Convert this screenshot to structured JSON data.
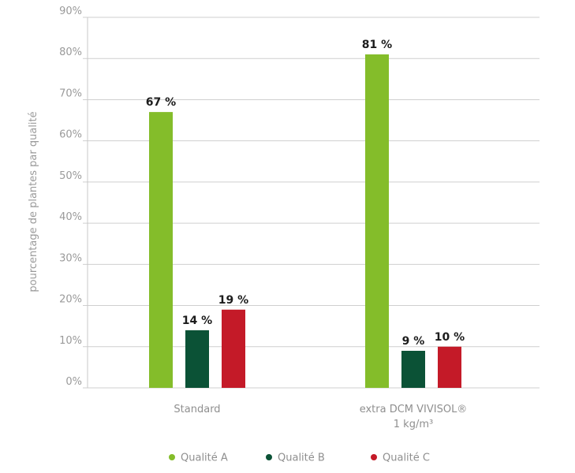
{
  "chart_data": {
    "type": "bar",
    "categories": [
      "Standard",
      "extra DCM VIVISOL®"
    ],
    "category_sublabels": [
      "",
      "1 kg/m³"
    ],
    "series": [
      {
        "name": "Qualité A",
        "color": "#84bd2a",
        "values": [
          67,
          81
        ],
        "labels": [
          "67 %",
          "81 %"
        ]
      },
      {
        "name": "Qualité B",
        "color": "#0b5236",
        "values": [
          14,
          9
        ],
        "labels": [
          "14 %",
          "9 %"
        ]
      },
      {
        "name": "Qualité C",
        "color": "#c41a28",
        "values": [
          19,
          10
        ],
        "labels": [
          "19 %",
          "10 %"
        ]
      }
    ],
    "title": "",
    "xlabel": "",
    "ylabel": "pourcentage de plantes par qualité",
    "ylim": [
      0,
      90
    ],
    "yticks": [
      0,
      10,
      20,
      30,
      40,
      50,
      60,
      70,
      80,
      90
    ],
    "ytick_labels": [
      "0%",
      "10%",
      "20%",
      "30%",
      "40%",
      "50%",
      "60%",
      "70%",
      "80%",
      "90%"
    ],
    "grid": true,
    "legend": "bottom"
  }
}
